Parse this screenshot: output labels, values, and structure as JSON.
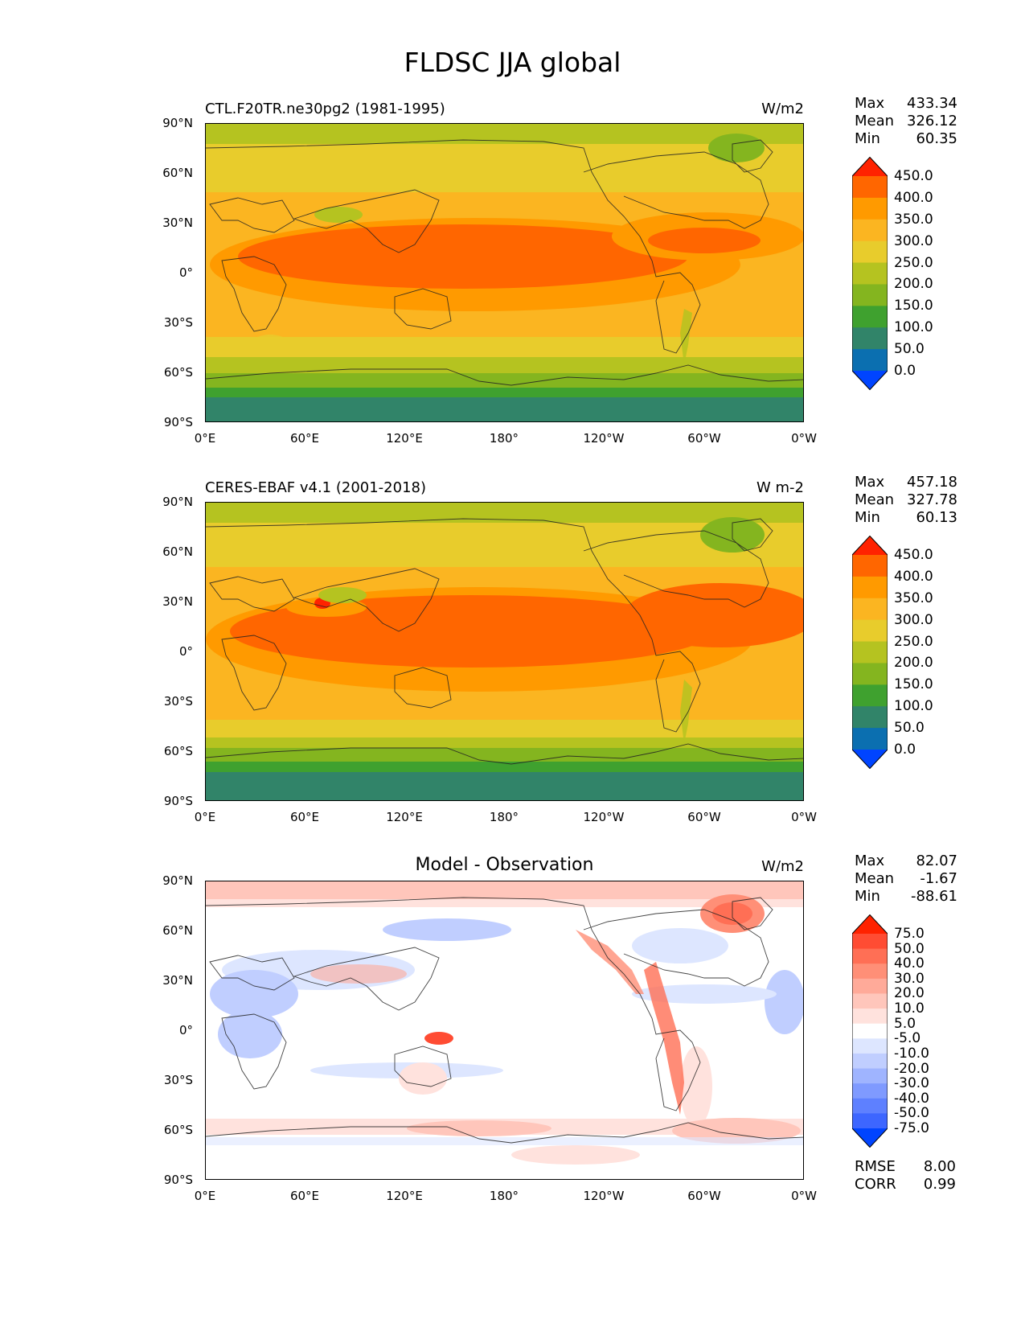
{
  "figure": {
    "title": "FLDSC JJA global"
  },
  "axes": {
    "y_ticks": [
      "90°N",
      "60°N",
      "30°N",
      "0°",
      "30°S",
      "60°S",
      "90°S"
    ],
    "x_ticks": [
      "0°E",
      "60°E",
      "120°E",
      "180°",
      "120°W",
      "60°W",
      "0°W"
    ]
  },
  "panels": [
    {
      "left_title": "CTL.F20TR.ne30pg2 (1981-1995)",
      "center_title": "",
      "units": "W/m2",
      "stats": [
        {
          "label": "Max",
          "value": "433.34"
        },
        {
          "label": "Mean",
          "value": "326.12"
        },
        {
          "label": "Min",
          "value": "60.35"
        }
      ],
      "colorbar_labels": [
        "450.0",
        "400.0",
        "350.0",
        "300.0",
        "250.0",
        "200.0",
        "150.0",
        "100.0",
        "50.0",
        "0.0"
      ],
      "colorbar_colors": [
        "#ff2200",
        "#ff6600",
        "#ff9a00",
        "#fbb521",
        "#e8cc2c",
        "#b5c320",
        "#84b51f",
        "#3fa12f",
        "#318469",
        "#0b6fb0",
        "#0044ff"
      ]
    },
    {
      "left_title": "CERES-EBAF v4.1 (2001-2018)",
      "center_title": "",
      "units": "W m-2",
      "stats": [
        {
          "label": "Max",
          "value": "457.18"
        },
        {
          "label": "Mean",
          "value": "327.78"
        },
        {
          "label": "Min",
          "value": "60.13"
        }
      ],
      "colorbar_labels": [
        "450.0",
        "400.0",
        "350.0",
        "300.0",
        "250.0",
        "200.0",
        "150.0",
        "100.0",
        "50.0",
        "0.0"
      ],
      "colorbar_colors": [
        "#ff2200",
        "#ff6600",
        "#ff9a00",
        "#fbb521",
        "#e8cc2c",
        "#b5c320",
        "#84b51f",
        "#3fa12f",
        "#318469",
        "#0b6fb0",
        "#0044ff"
      ]
    },
    {
      "left_title": "",
      "center_title": "Model - Observation",
      "units": "W/m2",
      "stats": [
        {
          "label": "Max",
          "value": "82.07"
        },
        {
          "label": "Mean",
          "value": "-1.67"
        },
        {
          "label": "Min",
          "value": "-88.61"
        }
      ],
      "colorbar_labels": [
        "75.0",
        "50.0",
        "40.0",
        "30.0",
        "20.0",
        "10.0",
        "5.0",
        "-5.0",
        "-10.0",
        "-20.0",
        "-30.0",
        "-40.0",
        "-50.0",
        "-75.0"
      ],
      "colorbar_colors": [
        "#ff2200",
        "#ff4c33",
        "#ff6f55",
        "#ff8f77",
        "#ffaa99",
        "#ffc6bb",
        "#ffe2dd",
        "#ffffff",
        "#dde6ff",
        "#c0ceff",
        "#9fb4ff",
        "#7f9aff",
        "#5e80ff",
        "#3d66ff",
        "#0044ff"
      ],
      "metrics": [
        {
          "label": "RMSE",
          "value": "8.00"
        },
        {
          "label": "CORR",
          "value": "0.99"
        }
      ]
    }
  ]
}
